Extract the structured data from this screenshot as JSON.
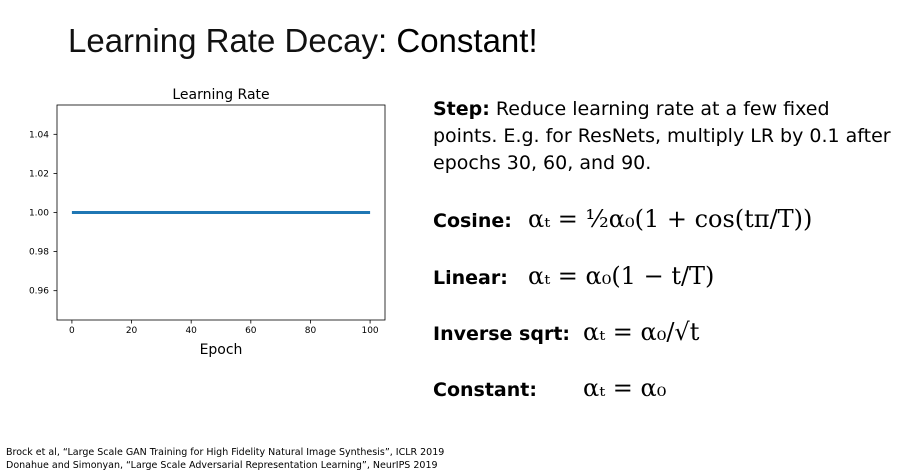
{
  "slide": {
    "title": {
      "main": "Learning Rate Decay",
      "rest": ": Constant!"
    },
    "step": {
      "label": "Step:",
      "text": "Reduce learning rate at a few fixed points. E.g. for ResNets, multiply LR by 0.1 after epochs 30, 60, and 90."
    },
    "schedules": [
      {
        "label": "Cosine:",
        "formula": "αₜ = ½α₀(1 + cos(tπ/T))"
      },
      {
        "label": "Linear:",
        "formula": "αₜ = α₀(1 − t/T)"
      },
      {
        "label": "Inverse sqrt:",
        "formula": "αₜ = α₀/√t"
      },
      {
        "label": "Constant:",
        "formula": "αₜ = α₀"
      }
    ],
    "citations": [
      "Brock et al, “Large Scale GAN Training for High Fidelity Natural Image Synthesis”, ICLR 2019",
      "Donahue and Simonyan, “Large Scale Adversarial Representation Learning”, NeurIPS 2019"
    ]
  },
  "chart_data": {
    "type": "line",
    "title": "Learning Rate",
    "x_label": "Epoch",
    "x": [
      0,
      100
    ],
    "values": [
      1,
      1
    ],
    "color": "#1f77b4",
    "xlim": [
      -5,
      105
    ],
    "xticks": [
      0,
      20,
      40,
      60,
      80,
      100
    ],
    "ylim": [
      0.945,
      1.055
    ],
    "yticks": [
      0.96,
      0.98,
      {
        "value": 1,
        "label": "1.00"
      },
      1.02,
      1.04
    ]
  }
}
